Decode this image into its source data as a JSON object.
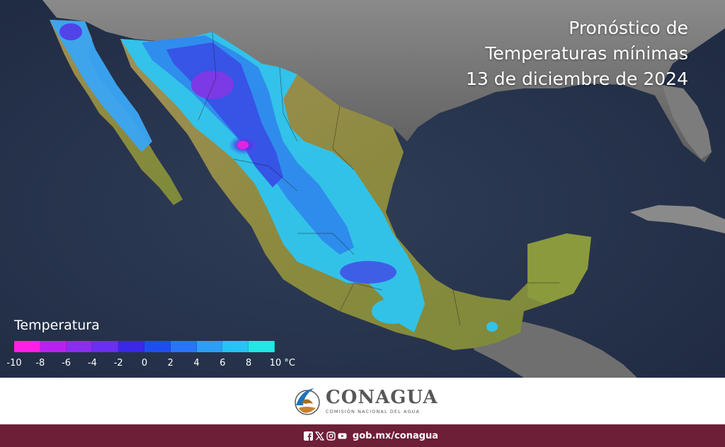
{
  "title": {
    "line1": "Pronóstico de",
    "line2": "Temperaturas mínimas",
    "line3": "13 de diciembre de 2024"
  },
  "legend": {
    "title": "Temperatura",
    "colors": [
      "#ff1fe6",
      "#b822f0",
      "#8a2ef0",
      "#6a2ff0",
      "#3b27e8",
      "#1f4ef0",
      "#2a74f7",
      "#2c9ff7",
      "#25c4f2",
      "#23e6e6"
    ],
    "ticks": [
      "-10",
      "-8",
      "-6",
      "-4",
      "-2",
      "0",
      "2",
      "4",
      "6",
      "8",
      "10 °C"
    ]
  },
  "brand": {
    "name": "CONAGUA",
    "subtitle": "COMISIÓN NACIONAL DEL AGUA"
  },
  "footer": {
    "link": "gob.mx/conagua",
    "icons": [
      "facebook-icon",
      "x-icon",
      "instagram-icon",
      "youtube-icon"
    ]
  },
  "colors": {
    "ocean": "#26334a",
    "land_gray": "#767676",
    "land_warm": "#8f8a3e",
    "footer": "#6d1f38"
  }
}
